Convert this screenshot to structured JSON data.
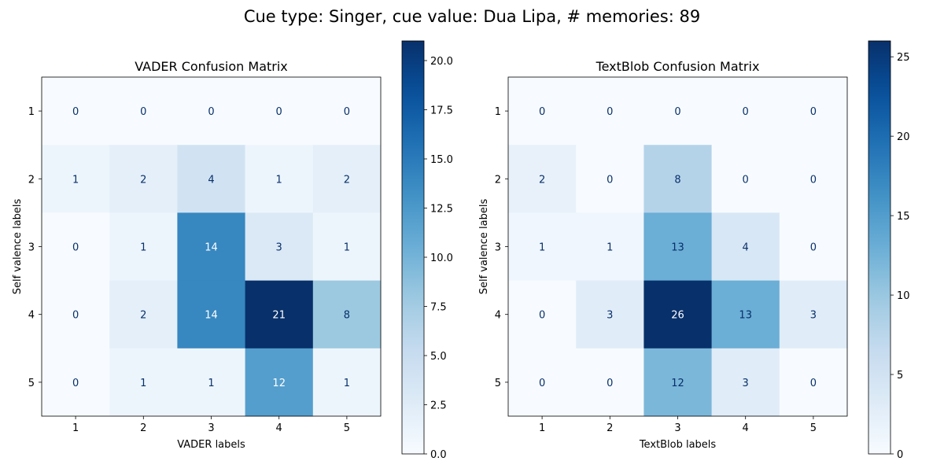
{
  "figure": {
    "suptitle": "Cue type: Singer, cue value: Dua Lipa, # memories: 89"
  },
  "chart_data": [
    {
      "type": "heatmap",
      "title": "VADER Confusion Matrix",
      "xlabel": "VADER labels",
      "ylabel": "Self valence labels",
      "x_categories": [
        "1",
        "2",
        "3",
        "4",
        "5"
      ],
      "y_categories": [
        "1",
        "2",
        "3",
        "4",
        "5"
      ],
      "values": [
        [
          0,
          0,
          0,
          0,
          0
        ],
        [
          1,
          2,
          4,
          1,
          2
        ],
        [
          0,
          1,
          14,
          3,
          1
        ],
        [
          0,
          2,
          14,
          21,
          8
        ],
        [
          0,
          1,
          1,
          12,
          1
        ]
      ],
      "colormap": "Blues",
      "colorbar": {
        "min": 0,
        "max": 21,
        "ticks": [
          0,
          2.5,
          5,
          7.5,
          10,
          12.5,
          15,
          17.5,
          20
        ],
        "tick_labels": [
          "0.0",
          "2.5",
          "5.0",
          "7.5",
          "10.0",
          "12.5",
          "15.0",
          "17.5",
          "20.0"
        ]
      }
    },
    {
      "type": "heatmap",
      "title": "TextBlob Confusion Matrix",
      "xlabel": "TextBlob labels",
      "ylabel": "Self valence labels",
      "x_categories": [
        "1",
        "2",
        "3",
        "4",
        "5"
      ],
      "y_categories": [
        "1",
        "2",
        "3",
        "4",
        "5"
      ],
      "values": [
        [
          0,
          0,
          0,
          0,
          0
        ],
        [
          2,
          0,
          8,
          0,
          0
        ],
        [
          1,
          1,
          13,
          4,
          0
        ],
        [
          0,
          3,
          26,
          13,
          3
        ],
        [
          0,
          0,
          12,
          3,
          0
        ]
      ],
      "colormap": "Blues",
      "colorbar": {
        "min": 0,
        "max": 26,
        "ticks": [
          0,
          5,
          10,
          15,
          20,
          25
        ],
        "tick_labels": [
          "0",
          "5",
          "10",
          "15",
          "20",
          "25"
        ]
      }
    }
  ]
}
